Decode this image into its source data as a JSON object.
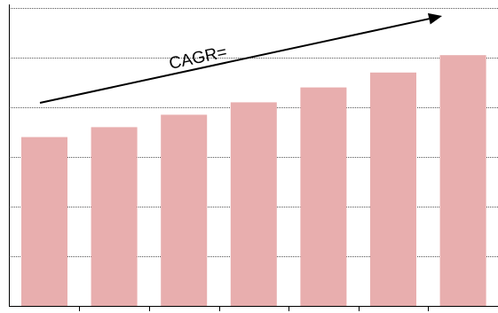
{
  "chart_data": {
    "type": "bar",
    "categories": [
      "",
      "",
      "",
      "",
      "",
      "",
      ""
    ],
    "values": [
      3.4,
      3.6,
      3.85,
      4.1,
      4.4,
      4.7,
      5.05
    ],
    "ylim": [
      0,
      6
    ],
    "grid": true,
    "annotation": "CAGR=",
    "colors": {
      "bar": "#e8aeae",
      "gridline": "#555555",
      "axis": "#000000",
      "arrow": "#000000"
    }
  }
}
